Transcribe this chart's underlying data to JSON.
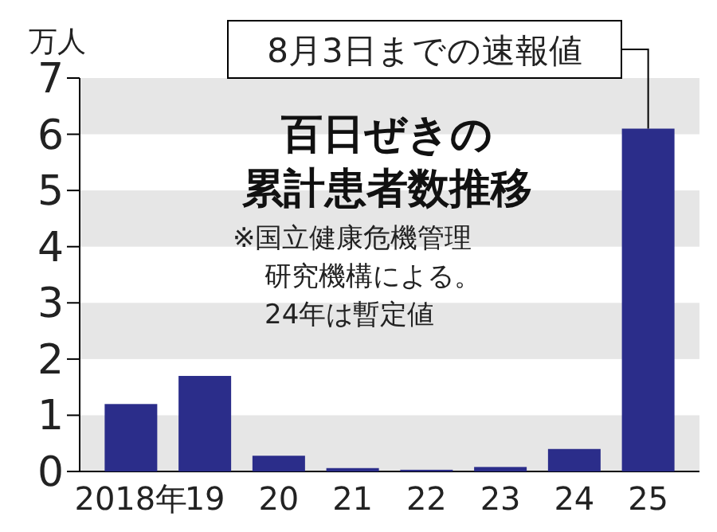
{
  "chart_data": {
    "type": "bar",
    "title": "百日ぜきの",
    "subtitle": "累計患者数推移",
    "ylabel": "万人",
    "categories": [
      "2018年",
      "19",
      "20",
      "21",
      "22",
      "23",
      "24",
      "25"
    ],
    "values": [
      1.2,
      1.7,
      0.28,
      0.06,
      0.03,
      0.08,
      0.4,
      6.1
    ],
    "color": "#2b2d8a",
    "ylim": [
      0,
      7
    ],
    "yticks": [
      0,
      1,
      2,
      3,
      4,
      5,
      6,
      7
    ],
    "bands": [
      {
        "axis": "y",
        "from": 6,
        "to": 7,
        "color": "#e6e6e6"
      },
      {
        "axis": "y",
        "from": 4,
        "to": 5,
        "color": "#e6e6e6"
      },
      {
        "axis": "y",
        "from": 2,
        "to": 3,
        "color": "#e6e6e6"
      },
      {
        "axis": "y",
        "from": 0,
        "to": 1,
        "color": "#e6e6e6"
      }
    ],
    "annotations": [
      "※国立健康危機管理",
      "研究機構による。",
      "24年は暫定値",
      {
        "text": "8月3日までの速報値",
        "x": "25",
        "y": 6.1
      }
    ]
  }
}
